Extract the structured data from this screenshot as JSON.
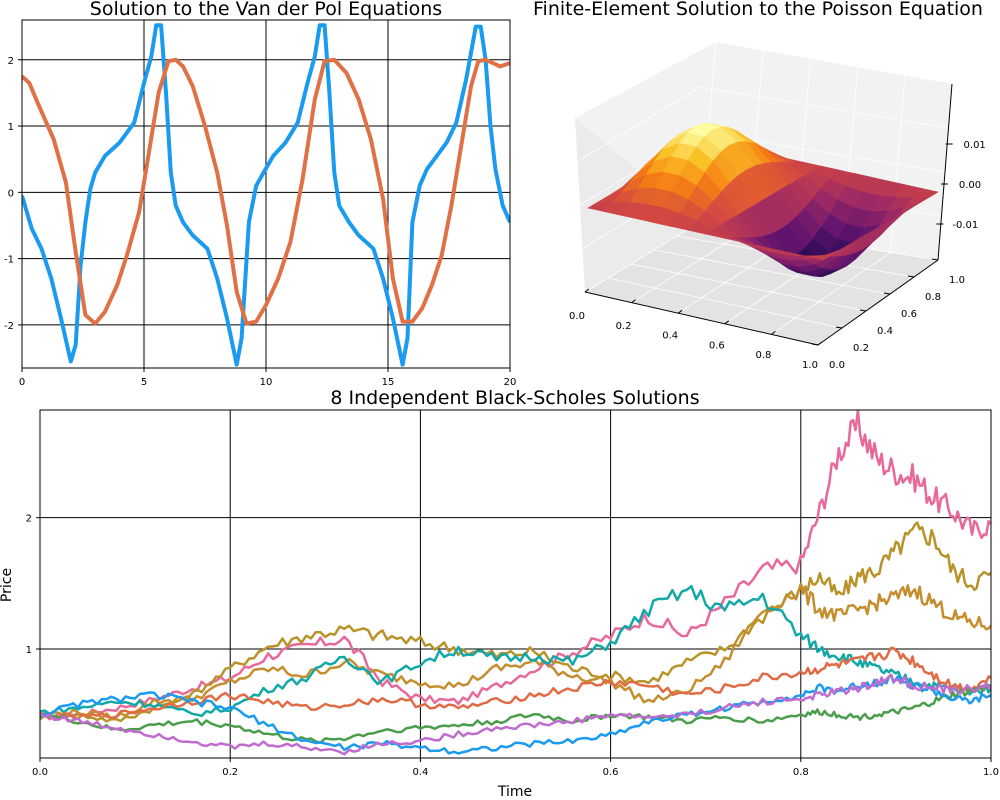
{
  "chart_data": [
    {
      "type": "line",
      "title": "Solution to the Van der Pol Equations",
      "xlim": [
        0,
        20
      ],
      "ylim": [
        -2.65,
        2.6
      ],
      "xticks": [
        "0",
        "5",
        "10",
        "15",
        "20"
      ],
      "yticks": [
        "-2",
        "-1",
        "0",
        "1",
        "2"
      ],
      "grid": true,
      "series": [
        {
          "color": "#1a9bef",
          "x": [
            0,
            0.4,
            0.8,
            1.2,
            1.6,
            2.0,
            2.2,
            2.4,
            2.6,
            2.8,
            3.0,
            3.4,
            4.0,
            4.6,
            5.0,
            5.3,
            5.5,
            5.7,
            5.9,
            6.1,
            6.3,
            6.6,
            7.0,
            7.6,
            8.0,
            8.4,
            8.8,
            9.0,
            9.3,
            9.6,
            9.9,
            10.3,
            10.8,
            11.3,
            11.7,
            12.0,
            12.2,
            12.4,
            12.6,
            12.8,
            13.0,
            13.4,
            13.8,
            14.4,
            14.8,
            15.2,
            15.6,
            15.8,
            16.0,
            16.3,
            16.6,
            17.0,
            17.4,
            17.8,
            18.2,
            18.6,
            18.8,
            19.0,
            19.2,
            19.4,
            19.7,
            20.0
          ],
          "y": [
            -0.05,
            -0.55,
            -0.85,
            -1.3,
            -1.9,
            -2.55,
            -2.3,
            -1.1,
            -0.45,
            0.05,
            0.3,
            0.55,
            0.75,
            1.05,
            1.65,
            2.05,
            2.52,
            2.52,
            1.5,
            0.3,
            -0.2,
            -0.45,
            -0.65,
            -0.85,
            -1.3,
            -1.9,
            -2.6,
            -2.2,
            -0.45,
            0.1,
            0.3,
            0.55,
            0.75,
            1.05,
            1.65,
            2.05,
            2.52,
            2.52,
            1.5,
            0.3,
            -0.2,
            -0.45,
            -0.65,
            -0.85,
            -1.3,
            -1.9,
            -2.6,
            -2.2,
            -0.45,
            0.1,
            0.35,
            0.55,
            0.75,
            1.05,
            1.7,
            2.5,
            2.5,
            2.0,
            1.0,
            0.35,
            -0.2,
            -0.45
          ]
        },
        {
          "color": "#e07046",
          "x": [
            0,
            0.3,
            0.7,
            1.3,
            1.8,
            2.2,
            2.6,
            3.0,
            3.4,
            3.9,
            4.3,
            4.8,
            5.2,
            5.6,
            6.0,
            6.3,
            6.6,
            7.0,
            7.5,
            8.0,
            8.4,
            8.8,
            9.2,
            9.6,
            10.0,
            10.5,
            11.0,
            11.5,
            12.0,
            12.4,
            12.8,
            13.3,
            13.8,
            14.3,
            14.8,
            15.2,
            15.6,
            16.0,
            16.4,
            16.8,
            17.2,
            17.6,
            18.0,
            18.4,
            18.7,
            19.0,
            19.3,
            19.6,
            20.0
          ],
          "y": [
            1.75,
            1.65,
            1.3,
            0.8,
            0.15,
            -0.9,
            -1.85,
            -1.98,
            -1.8,
            -1.4,
            -0.95,
            -0.3,
            0.6,
            1.5,
            1.98,
            2.0,
            1.9,
            1.6,
            1.0,
            0.3,
            -0.5,
            -1.5,
            -1.98,
            -1.95,
            -1.7,
            -1.3,
            -0.75,
            0.2,
            1.4,
            1.98,
            2.0,
            1.8,
            1.4,
            0.8,
            -0.1,
            -1.3,
            -1.95,
            -1.95,
            -1.75,
            -1.4,
            -0.95,
            -0.2,
            0.7,
            1.6,
            1.98,
            2.0,
            1.95,
            1.9,
            1.95
          ]
        }
      ]
    },
    {
      "type": "surface3d",
      "title": "Finite-Element Solution to the Poisson Equation",
      "xlim": [
        0,
        1
      ],
      "ylim": [
        0,
        1
      ],
      "zlim": [
        -0.015,
        0.015
      ],
      "xticks": [
        "0.0",
        "0.2",
        "0.4",
        "0.6",
        "0.8",
        "1.0"
      ],
      "yticks": [
        "0.0",
        "0.2",
        "0.4",
        "0.6",
        "0.8",
        "1.0"
      ],
      "zticks": [
        "-0.01",
        "0.00",
        "0.01"
      ],
      "colormap": "inferno",
      "surface": "sin(2*pi*x) * sin(pi*y) bump, min ~ -0.015, max ~ 0.015"
    },
    {
      "type": "line",
      "title": "8 Independent Black-Scholes Solutions",
      "xlabel": "Time",
      "ylabel": "Price",
      "xlim": [
        0,
        1
      ],
      "ylim": [
        0.17,
        2.82
      ],
      "xticks": [
        "0.0",
        "0.2",
        "0.4",
        "0.6",
        "0.8",
        "1.0"
      ],
      "yticks": [
        "1",
        "2"
      ],
      "grid": true,
      "series_x": [
        0,
        0.04,
        0.08,
        0.12,
        0.16,
        0.2,
        0.24,
        0.28,
        0.32,
        0.36,
        0.4,
        0.44,
        0.48,
        0.52,
        0.56,
        0.6,
        0.64,
        0.68,
        0.72,
        0.76,
        0.8,
        0.82,
        0.84,
        0.86,
        0.88,
        0.9,
        0.92,
        0.94,
        0.96,
        0.98,
        1.0
      ],
      "series": [
        {
          "color": "#e8689a",
          "values": [
            0.48,
            0.5,
            0.55,
            0.62,
            0.7,
            0.78,
            0.95,
            1.02,
            1.08,
            0.75,
            0.62,
            0.6,
            0.72,
            0.85,
            0.98,
            1.1,
            1.25,
            1.1,
            1.35,
            1.6,
            1.65,
            2.05,
            2.5,
            2.7,
            2.45,
            2.35,
            2.3,
            2.15,
            2.05,
            1.9,
            1.95
          ]
        },
        {
          "color": "#b8932a",
          "values": [
            0.48,
            0.5,
            0.45,
            0.55,
            0.65,
            0.85,
            1.02,
            1.1,
            1.15,
            1.1,
            1.05,
            1.0,
            0.95,
            0.98,
            0.85,
            0.8,
            0.75,
            0.9,
            1.0,
            1.25,
            1.45,
            1.55,
            1.4,
            1.55,
            1.6,
            1.75,
            1.9,
            1.85,
            1.6,
            1.5,
            1.58
          ]
        },
        {
          "color": "#c48e2e",
          "values": [
            0.5,
            0.52,
            0.48,
            0.6,
            0.62,
            0.75,
            0.85,
            0.8,
            0.9,
            0.8,
            0.75,
            0.72,
            0.85,
            0.9,
            0.8,
            0.75,
            0.6,
            0.68,
            0.9,
            1.3,
            1.45,
            1.3,
            1.25,
            1.3,
            1.35,
            1.4,
            1.45,
            1.35,
            1.25,
            1.2,
            1.18
          ]
        },
        {
          "color": "#13a8a8",
          "values": [
            0.52,
            0.55,
            0.6,
            0.58,
            0.5,
            0.55,
            0.7,
            0.78,
            0.95,
            0.75,
            0.9,
            1.0,
            0.92,
            0.95,
            0.9,
            1.05,
            1.3,
            1.45,
            1.3,
            1.4,
            1.1,
            1.0,
            0.95,
            0.9,
            0.85,
            0.8,
            0.75,
            0.72,
            0.7,
            0.68,
            0.7
          ]
        },
        {
          "color": "#e06b44",
          "values": [
            0.5,
            0.48,
            0.5,
            0.55,
            0.6,
            0.65,
            0.6,
            0.55,
            0.58,
            0.62,
            0.58,
            0.55,
            0.6,
            0.65,
            0.7,
            0.75,
            0.72,
            0.65,
            0.7,
            0.78,
            0.82,
            0.85,
            0.88,
            0.9,
            0.95,
            0.98,
            0.9,
            0.8,
            0.72,
            0.7,
            0.78
          ]
        },
        {
          "color": "#4a9e4a",
          "values": [
            0.5,
            0.45,
            0.38,
            0.42,
            0.45,
            0.42,
            0.35,
            0.3,
            0.32,
            0.38,
            0.4,
            0.42,
            0.45,
            0.5,
            0.45,
            0.5,
            0.48,
            0.45,
            0.48,
            0.45,
            0.5,
            0.52,
            0.5,
            0.48,
            0.5,
            0.52,
            0.55,
            0.6,
            0.65,
            0.68,
            0.72
          ]
        },
        {
          "color": "#1a9bef",
          "values": [
            0.5,
            0.58,
            0.62,
            0.65,
            0.6,
            0.55,
            0.42,
            0.3,
            0.25,
            0.28,
            0.25,
            0.22,
            0.25,
            0.28,
            0.3,
            0.35,
            0.45,
            0.5,
            0.55,
            0.6,
            0.65,
            0.7,
            0.68,
            0.72,
            0.75,
            0.78,
            0.72,
            0.68,
            0.62,
            0.6,
            0.65
          ]
        },
        {
          "color": "#c06bd0",
          "values": [
            0.5,
            0.45,
            0.4,
            0.35,
            0.3,
            0.25,
            0.28,
            0.25,
            0.22,
            0.28,
            0.3,
            0.35,
            0.4,
            0.42,
            0.45,
            0.5,
            0.48,
            0.5,
            0.55,
            0.6,
            0.62,
            0.65,
            0.68,
            0.7,
            0.75,
            0.78,
            0.72,
            0.7,
            0.68,
            0.7,
            0.72
          ]
        }
      ]
    }
  ]
}
